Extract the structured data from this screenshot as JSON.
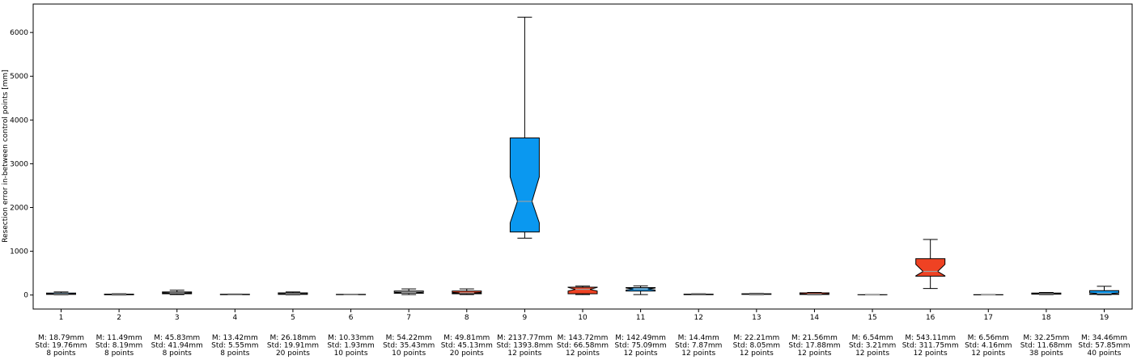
{
  "chart_data": {
    "type": "boxplot",
    "ylabel": "Resection error in-between control points [mm]",
    "ylim": [
      -320,
      6650
    ],
    "yticks": [
      0,
      1000,
      2000,
      3000,
      4000,
      5000,
      6000
    ],
    "grid": false,
    "colors": {
      "blue": "#0a98f0",
      "red": "#ef4223",
      "gray": "#a0a0a0"
    },
    "boxes": [
      {
        "label": "1",
        "whisker_low": 5,
        "q1": 15,
        "median": 22,
        "q3": 45,
        "whisker_high": 70,
        "notch_low": 18,
        "notch_high": 28,
        "color": "#0a98f0",
        "stats": [
          "M: 18.79mm",
          "Std: 19.76mm",
          "8 points"
        ]
      },
      {
        "label": "2",
        "whisker_low": 0,
        "q1": 5,
        "median": 10,
        "q3": 20,
        "whisker_high": 30,
        "notch_low": 8,
        "notch_high": 13,
        "color": "#ef4223",
        "stats": [
          "M: 11.49mm",
          "Std: 8.19mm",
          "8 points"
        ]
      },
      {
        "label": "3",
        "whisker_low": 10,
        "q1": 30,
        "median": 45,
        "q3": 70,
        "whisker_high": 110,
        "notch_low": 38,
        "notch_high": 52,
        "color": "#a0a0a0",
        "stats": [
          "M: 45.83mm",
          "Std: 41.94mm",
          "8 points"
        ]
      },
      {
        "label": "4",
        "whisker_low": 5,
        "q1": 10,
        "median": 13,
        "q3": 18,
        "whisker_high": 25,
        "notch_low": 11,
        "notch_high": 15,
        "color": "#ef4223",
        "stats": [
          "M: 13.42mm",
          "Std: 5.55mm",
          "8 points"
        ]
      },
      {
        "label": "5",
        "whisker_low": 5,
        "q1": 15,
        "median": 25,
        "q3": 50,
        "whisker_high": 70,
        "notch_low": 20,
        "notch_high": 30,
        "color": "#a0a0a0",
        "stats": [
          "M: 26.18mm",
          "Std: 19.91mm",
          "20 points"
        ]
      },
      {
        "label": "6",
        "whisker_low": 5,
        "q1": 7,
        "median": 10,
        "q3": 14,
        "whisker_high": 18,
        "notch_low": 9,
        "notch_high": 11,
        "color": "#a0a0a0",
        "stats": [
          "M: 10.33mm",
          "Std: 1.93mm",
          "10 points"
        ]
      },
      {
        "label": "7",
        "whisker_low": 10,
        "q1": 40,
        "median": 55,
        "q3": 90,
        "whisker_high": 140,
        "notch_low": 45,
        "notch_high": 65,
        "color": "#a0a0a0",
        "stats": [
          "M: 54.22mm",
          "Std: 35.43mm",
          "10 points"
        ]
      },
      {
        "label": "8",
        "whisker_low": 10,
        "q1": 30,
        "median": 50,
        "q3": 90,
        "whisker_high": 140,
        "notch_low": 40,
        "notch_high": 60,
        "color": "#ef4223",
        "stats": [
          "M: 49.81mm",
          "Std: 45.13mm",
          "20 points"
        ]
      },
      {
        "label": "9",
        "whisker_low": 1300,
        "q1": 1440,
        "median": 2140,
        "q3": 3590,
        "whisker_high": 6350,
        "notch_low": 1650,
        "notch_high": 2700,
        "color": "#0a98f0",
        "stats": [
          "M: 2137.77mm",
          "Std: 1393.8mm",
          "12 points"
        ]
      },
      {
        "label": "10",
        "whisker_low": 10,
        "q1": 30,
        "median": 130,
        "q3": 180,
        "whisker_high": 205,
        "notch_low": 90,
        "notch_high": 175,
        "color": "#ef4223",
        "stats": [
          "M: 143.72mm",
          "Std: 66.58mm",
          "12 points"
        ]
      },
      {
        "label": "11",
        "whisker_low": 10,
        "q1": 90,
        "median": 140,
        "q3": 170,
        "whisker_high": 210,
        "notch_low": 115,
        "notch_high": 160,
        "color": "#0a98f0",
        "stats": [
          "M: 142.49mm",
          "Std: 75.09mm",
          "12 points"
        ]
      },
      {
        "label": "12",
        "whisker_low": 3,
        "q1": 8,
        "median": 14,
        "q3": 20,
        "whisker_high": 28,
        "notch_low": 11,
        "notch_high": 17,
        "color": "#ef4223",
        "stats": [
          "M: 14.4mm",
          "Std: 7.87mm",
          "12 points"
        ]
      },
      {
        "label": "13",
        "whisker_low": 8,
        "q1": 15,
        "median": 22,
        "q3": 30,
        "whisker_high": 38,
        "notch_low": 18,
        "notch_high": 26,
        "color": "#ef4223",
        "stats": [
          "M: 22.21mm",
          "Std: 8.05mm",
          "12 points"
        ]
      },
      {
        "label": "14",
        "whisker_low": 5,
        "q1": 12,
        "median": 20,
        "q3": 50,
        "whisker_high": 60,
        "notch_low": 14,
        "notch_high": 30,
        "color": "#ef4223",
        "stats": [
          "M: 21.56mm",
          "Std: 17.88mm",
          "12 points"
        ]
      },
      {
        "label": "15",
        "whisker_low": 1,
        "q1": 3,
        "median": 6,
        "q3": 9,
        "whisker_high": 12,
        "notch_low": 4,
        "notch_high": 8,
        "color": "#a0a0a0",
        "stats": [
          "M: 6.54mm",
          "Std: 3.21mm",
          "12 points"
        ]
      },
      {
        "label": "16",
        "whisker_low": 150,
        "q1": 430,
        "median": 540,
        "q3": 830,
        "whisker_high": 1270,
        "notch_low": 440,
        "notch_high": 700,
        "color": "#ef4223",
        "stats": [
          "M: 543.11mm",
          "Std: 311.75mm",
          "12 points"
        ]
      },
      {
        "label": "17",
        "whisker_low": 1,
        "q1": 4,
        "median": 6,
        "q3": 9,
        "whisker_high": 12,
        "notch_low": 5,
        "notch_high": 8,
        "color": "#a0a0a0",
        "stats": [
          "M: 6.56mm",
          "Std: 4.16mm",
          "12 points"
        ]
      },
      {
        "label": "18",
        "whisker_low": 10,
        "q1": 20,
        "median": 30,
        "q3": 45,
        "whisker_high": 60,
        "notch_low": 26,
        "notch_high": 35,
        "color": "#a0a0a0",
        "stats": [
          "M: 32.25mm",
          "Std: 11.68mm",
          "38 points"
        ]
      },
      {
        "label": "19",
        "whisker_low": 5,
        "q1": 15,
        "median": 35,
        "q3": 100,
        "whisker_high": 200,
        "notch_low": 20,
        "notch_high": 50,
        "color": "#0a98f0",
        "stats": [
          "M: 34.46mm",
          "Std: 57.85mm",
          "40 points"
        ]
      }
    ]
  }
}
